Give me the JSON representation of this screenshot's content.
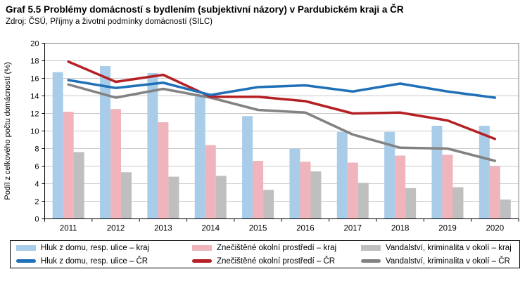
{
  "header": {
    "title": "Graf 5.5 Problémy domácností s bydlením (subjektivní názory) v Pardubickém kraji a ČR",
    "source": "Zdroj: ČSÚ, Příjmy a životní podmínky domácností (SILC)"
  },
  "chart_data": {
    "type": "bar+line",
    "categories": [
      "2011",
      "2012",
      "2013",
      "2014",
      "2015",
      "2016",
      "2017",
      "2018",
      "2019",
      "2020"
    ],
    "ylabel": "Podíl z celkového počtu domácností (%)",
    "ylim": [
      0,
      20
    ],
    "ytick_step": 2,
    "grid": "horizontal",
    "legend_position": "bottom",
    "bar_series": [
      {
        "name": "Hluk z domu, resp. ulice – kraj",
        "color": "#A9CDE9",
        "values": [
          16.7,
          17.4,
          16.6,
          14.0,
          11.7,
          8.0,
          9.9,
          9.9,
          10.6,
          10.6
        ]
      },
      {
        "name": "Znečištěné okolní prostředí – kraj",
        "color": "#EFB4BC",
        "values": [
          12.2,
          12.5,
          11.0,
          8.4,
          6.6,
          6.5,
          6.4,
          7.2,
          7.3,
          6.0
        ]
      },
      {
        "name": "Vandalství, kriminalita v okolí – kraj",
        "color": "#BFBFBF",
        "values": [
          7.6,
          5.3,
          4.8,
          4.9,
          3.3,
          5.4,
          4.1,
          3.5,
          3.6,
          2.2
        ]
      }
    ],
    "line_series": [
      {
        "name": "Hluk z domu, resp. ulice – ČR",
        "color": "#1F70B8",
        "values": [
          15.8,
          14.9,
          15.5,
          14.1,
          15.0,
          15.2,
          14.5,
          15.4,
          14.5,
          13.8
        ]
      },
      {
        "name": "Znečištěné okolní prostředí – ČR",
        "color": "#B52025",
        "values": [
          17.9,
          15.6,
          16.4,
          13.9,
          13.9,
          13.4,
          12.0,
          12.1,
          11.2,
          9.1
        ]
      },
      {
        "name": "Vandalství, kriminalita v okolí – ČR",
        "color": "#828282",
        "values": [
          15.3,
          13.8,
          14.8,
          13.8,
          12.4,
          12.1,
          9.6,
          8.1,
          8.0,
          6.6
        ]
      }
    ],
    "axis_color": "#000000",
    "grid_color": "#C9C9C9",
    "frame_color": "#7F7F7F"
  }
}
